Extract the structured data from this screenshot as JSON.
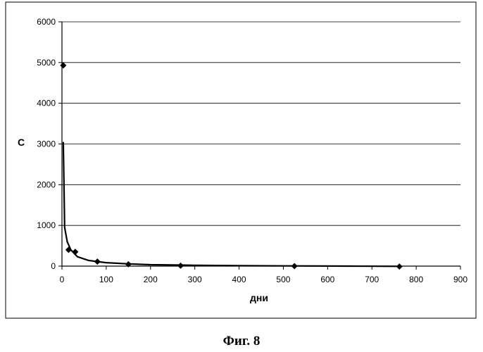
{
  "chart_data": {
    "type": "scatter",
    "xlabel": "дни",
    "ylabel": "C",
    "xlim": [
      0,
      900
    ],
    "ylim": [
      0,
      6000
    ],
    "x_ticks": [
      0,
      100,
      200,
      300,
      400,
      500,
      600,
      700,
      800,
      900
    ],
    "y_ticks": [
      0,
      1000,
      2000,
      3000,
      4000,
      5000,
      6000
    ],
    "grid": "horizontal",
    "series": [
      {
        "type": "scatter",
        "marker": "diamond",
        "points": [
          {
            "x": 3,
            "y": 4930
          },
          {
            "x": 15,
            "y": 400
          },
          {
            "x": 30,
            "y": 350
          },
          {
            "x": 80,
            "y": 110
          },
          {
            "x": 150,
            "y": 45
          },
          {
            "x": 268,
            "y": 10
          },
          {
            "x": 525,
            "y": 0
          },
          {
            "x": 762,
            "y": -10
          }
        ]
      },
      {
        "type": "line",
        "points": [
          {
            "x": 3,
            "y": 3050
          },
          {
            "x": 6,
            "y": 950
          },
          {
            "x": 12,
            "y": 600
          },
          {
            "x": 20,
            "y": 400
          },
          {
            "x": 35,
            "y": 230
          },
          {
            "x": 60,
            "y": 140
          },
          {
            "x": 80,
            "y": 110
          },
          {
            "x": 100,
            "y": 85
          },
          {
            "x": 150,
            "y": 55
          },
          {
            "x": 200,
            "y": 35
          },
          {
            "x": 300,
            "y": 20
          },
          {
            "x": 400,
            "y": 10
          },
          {
            "x": 525,
            "y": 5
          },
          {
            "x": 650,
            "y": 0
          },
          {
            "x": 762,
            "y": -5
          }
        ]
      }
    ]
  },
  "caption": "Фиг. 8"
}
